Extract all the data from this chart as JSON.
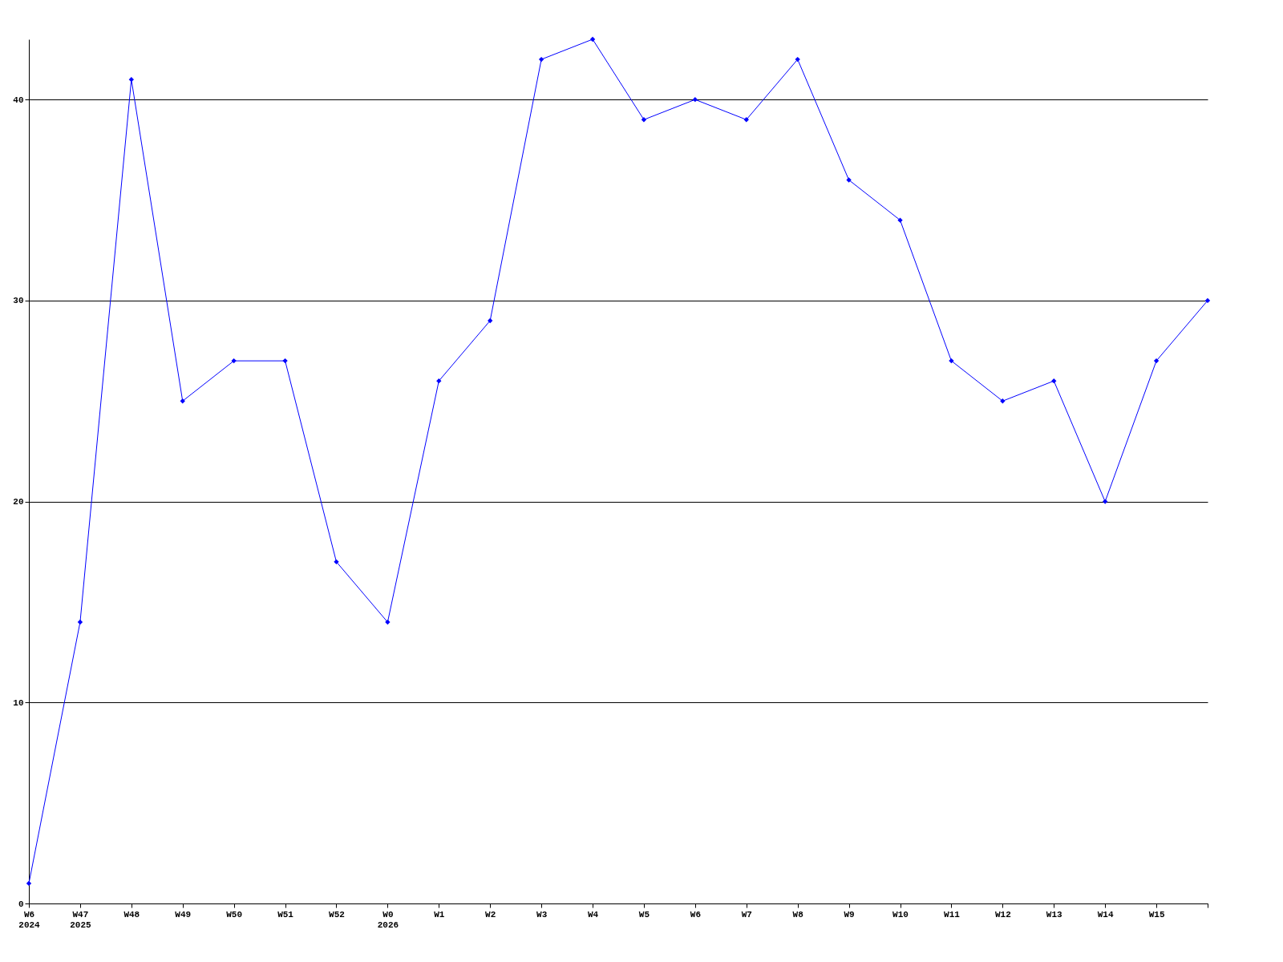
{
  "chart_data": {
    "type": "line",
    "categories": [
      "W6\n2024",
      "W47\n2025",
      "W48",
      "W49",
      "W50",
      "W51",
      "W52",
      "W0\n2026",
      "W1",
      "W2",
      "W3",
      "W4",
      "W5",
      "W6",
      "W7",
      "W8",
      "W9",
      "W10",
      "W11",
      "W12",
      "W13",
      "W14",
      "W15",
      null
    ],
    "series": [
      {
        "color": "#0000ff",
        "values": [
          1,
          14,
          41,
          25,
          27,
          27,
          17,
          14,
          26,
          29,
          42,
          43,
          39,
          40,
          39,
          42,
          36,
          34,
          27,
          25,
          26,
          20,
          27,
          30
        ]
      }
    ],
    "ylim": [
      0,
      43
    ],
    "yticks": [
      0,
      10,
      20,
      30,
      40
    ],
    "grid": "y",
    "marker": "diamond",
    "line_style": "solid"
  }
}
